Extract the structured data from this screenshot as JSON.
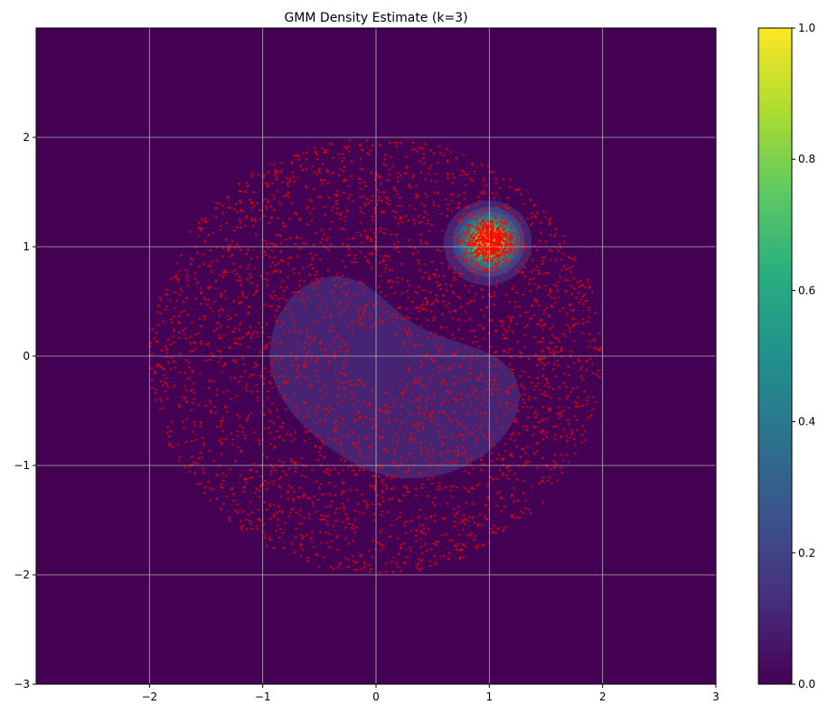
{
  "chart_data": {
    "type": "heatmap",
    "title": "GMM Density Estimate (k=3)",
    "xlabel": "",
    "ylabel": "",
    "xlim": [
      -3,
      3
    ],
    "ylim": [
      -3,
      3
    ],
    "xticks": [
      -2,
      -1,
      0,
      1,
      2,
      3
    ],
    "yticks": [
      -3,
      -2,
      -1,
      0,
      1,
      2
    ],
    "xtick_labels": [
      "−2",
      "−1",
      "0",
      "1",
      "2",
      "3"
    ],
    "ytick_labels": [
      "−3",
      "−2",
      "−1",
      "0",
      "1",
      "2"
    ],
    "grid": true,
    "colormap": "viridis",
    "colorbar": {
      "range": [
        0,
        1
      ],
      "ticks": [
        0,
        0.2,
        0.4,
        0.6,
        0.8,
        1
      ],
      "tick_labels": [
        "0.0",
        "0.2",
        "0.4",
        "0.6",
        "0.8",
        "1.0"
      ]
    },
    "density_components": [
      {
        "mean": [
          1.0,
          1.05
        ],
        "std": [
          0.17,
          0.17
        ],
        "angle_deg": 0,
        "peak": 1.0
      },
      {
        "mean": [
          -0.45,
          0.15
        ],
        "std": [
          0.75,
          0.95
        ],
        "angle_deg": -20,
        "peak": 0.12
      },
      {
        "mean": [
          0.75,
          -0.55
        ],
        "std": [
          0.8,
          0.55
        ],
        "angle_deg": 35,
        "peak": 0.12
      }
    ],
    "scatter": {
      "color": "#ff0000",
      "rings": {
        "count": 3200,
        "inner_radius": 0.25,
        "outer_radius": 2.0
      },
      "cluster": {
        "count": 700,
        "center": [
          1.0,
          1.05
        ],
        "std": 0.11
      }
    }
  }
}
